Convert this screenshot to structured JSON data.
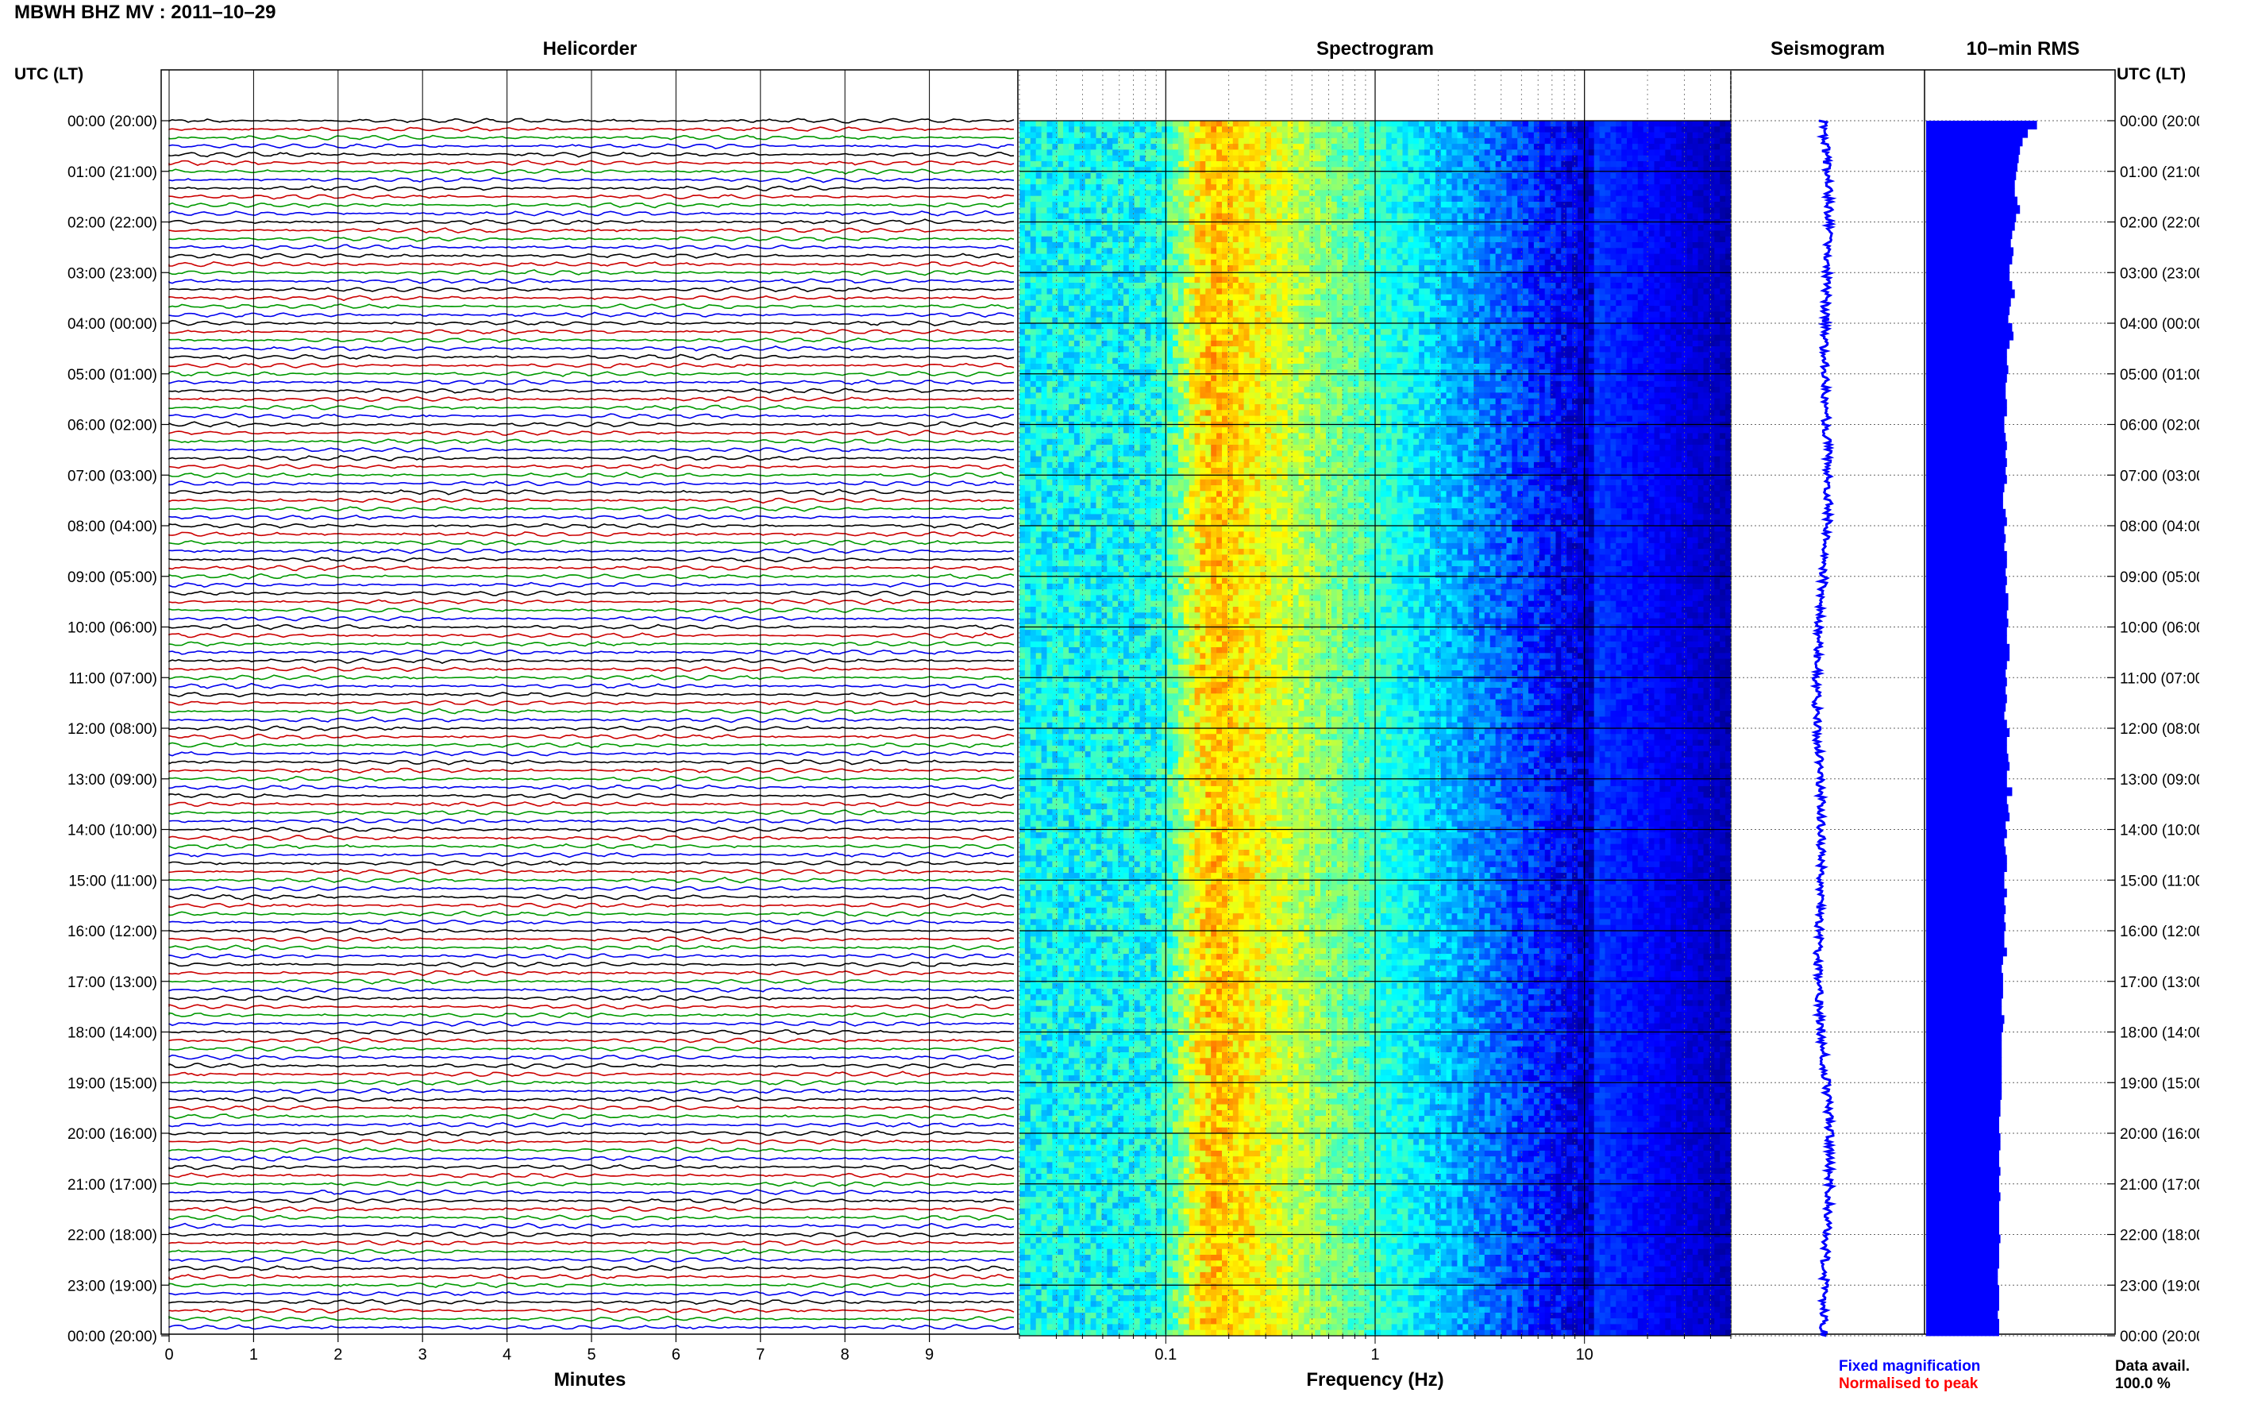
{
  "header": {
    "title": "MBWH BHZ MV : 2011–10–29",
    "utc_left": "UTC (LT)",
    "utc_right": "UTC (LT)"
  },
  "panels": {
    "helicorder": "Helicorder",
    "spectrogram": "Spectrogram",
    "seismogram": "Seismogram",
    "rms": "10–min RMS"
  },
  "axes": {
    "minutes_label": "Minutes",
    "frequency_label": "Frequency (Hz)",
    "minute_ticks": [
      "0",
      "1",
      "2",
      "3",
      "4",
      "5",
      "6",
      "7",
      "8",
      "9"
    ],
    "frequency_ticks": [
      "0.1",
      "1",
      "10"
    ]
  },
  "legend": {
    "fixed": "Fixed magnification",
    "normalised": "Normalised to peak",
    "fixed_color": "#0000ff",
    "normalised_color": "#ff0000"
  },
  "availability": {
    "label": "Data avail.",
    "value": "100.0 %"
  },
  "colors": {
    "trace_cycle": [
      "#000000",
      "#cc0000",
      "#009900",
      "#0000ee"
    ],
    "spectrogram_low": "#00008b",
    "spectrogram_mid": "#00ffff",
    "spectrogram_high": "#ffff00",
    "rms_bar": "#0000ff"
  },
  "chart_data": {
    "type": "heatmap",
    "station": "MBWH BHZ MV",
    "date": "2011–10–29",
    "hour_labels": [
      "00:00 (20:00)",
      "01:00 (21:00)",
      "02:00 (22:00)",
      "03:00 (23:00)",
      "04:00 (00:00)",
      "05:00 (01:00)",
      "06:00 (02:00)",
      "07:00 (03:00)",
      "08:00 (04:00)",
      "09:00 (05:00)",
      "10:00 (06:00)",
      "11:00 (07:00)",
      "12:00 (08:00)",
      "13:00 (09:00)",
      "14:00 (10:00)",
      "15:00 (11:00)",
      "16:00 (12:00)",
      "17:00 (13:00)",
      "18:00 (14:00)",
      "19:00 (15:00)",
      "20:00 (16:00)",
      "21:00 (17:00)",
      "22:00 (18:00)",
      "23:00 (19:00)",
      "00:00 (20:00)"
    ],
    "helicorder": {
      "xlabel": "Minutes",
      "xlim": [
        0,
        10
      ],
      "lines_per_hour": 6,
      "hours": 24
    },
    "spectrogram": {
      "xlabel": "Frequency (Hz)",
      "xscale": "log",
      "xlim": [
        0.02,
        50
      ],
      "peak_frequency_hz": 0.16
    },
    "rms_10min_relative": [
      0.85,
      0.78,
      0.74,
      0.72,
      0.71,
      0.7,
      0.69,
      0.68,
      0.68,
      0.7,
      0.72,
      0.69,
      0.68,
      0.66,
      0.65,
      0.67,
      0.66,
      0.64,
      0.64,
      0.66,
      0.68,
      0.65,
      0.64,
      0.63,
      0.66,
      0.67,
      0.64,
      0.62,
      0.62,
      0.63,
      0.62,
      0.61,
      0.61,
      0.62,
      0.62,
      0.6,
      0.6,
      0.61,
      0.62,
      0.61,
      0.62,
      0.61,
      0.62,
      0.6,
      0.59,
      0.59,
      0.61,
      0.62,
      0.6,
      0.61,
      0.6,
      0.62,
      0.62,
      0.61,
      0.62,
      0.61,
      0.63,
      0.63,
      0.62,
      0.63,
      0.62,
      0.62,
      0.64,
      0.64,
      0.62,
      0.61,
      0.62,
      0.61,
      0.62,
      0.61,
      0.6,
      0.62,
      0.64,
      0.62,
      0.62,
      0.63,
      0.64,
      0.62,
      0.62,
      0.66,
      0.62,
      0.63,
      0.64,
      0.61,
      0.62,
      0.6,
      0.61,
      0.62,
      0.62,
      0.6,
      0.6,
      0.62,
      0.6,
      0.61,
      0.6,
      0.61,
      0.6,
      0.6,
      0.62,
      0.59,
      0.58,
      0.59,
      0.59,
      0.59,
      0.58,
      0.58,
      0.6,
      0.59,
      0.58,
      0.58,
      0.58,
      0.58,
      0.58,
      0.58,
      0.58,
      0.58,
      0.57,
      0.57,
      0.56,
      0.56,
      0.57,
      0.57,
      0.56,
      0.56,
      0.57,
      0.56,
      0.56,
      0.57,
      0.56,
      0.56,
      0.56,
      0.56,
      0.57,
      0.56,
      0.56,
      0.56,
      0.55,
      0.55,
      0.56,
      0.56,
      0.56,
      0.55,
      0.56,
      0.56
    ]
  }
}
